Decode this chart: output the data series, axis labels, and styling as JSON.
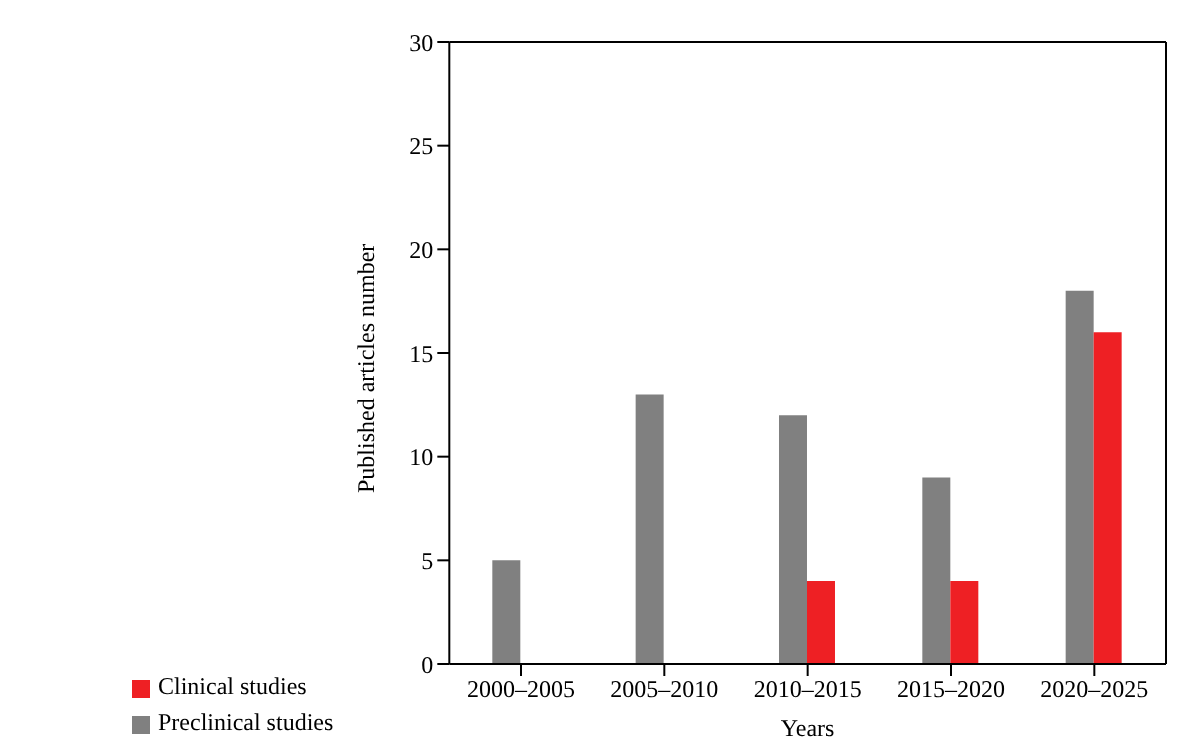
{
  "chart_data": {
    "type": "bar",
    "xlabel": "Years",
    "ylabel": "Published articles number",
    "categories": [
      "2000–2005",
      "2005–2010",
      "2010–2015",
      "2015–2020",
      "2020–2025"
    ],
    "series": [
      {
        "name": "Preclinical studies",
        "color": "#808080",
        "values": [
          5,
          13,
          12,
          9,
          18
        ]
      },
      {
        "name": "Clinical studies",
        "color": "#ee2024",
        "values": [
          0,
          0,
          4,
          4,
          16
        ]
      }
    ],
    "ylim": [
      0,
      30
    ],
    "yticks": [
      0,
      5,
      10,
      15,
      20,
      25,
      30
    ],
    "grid": false,
    "legend": "bottom left"
  }
}
